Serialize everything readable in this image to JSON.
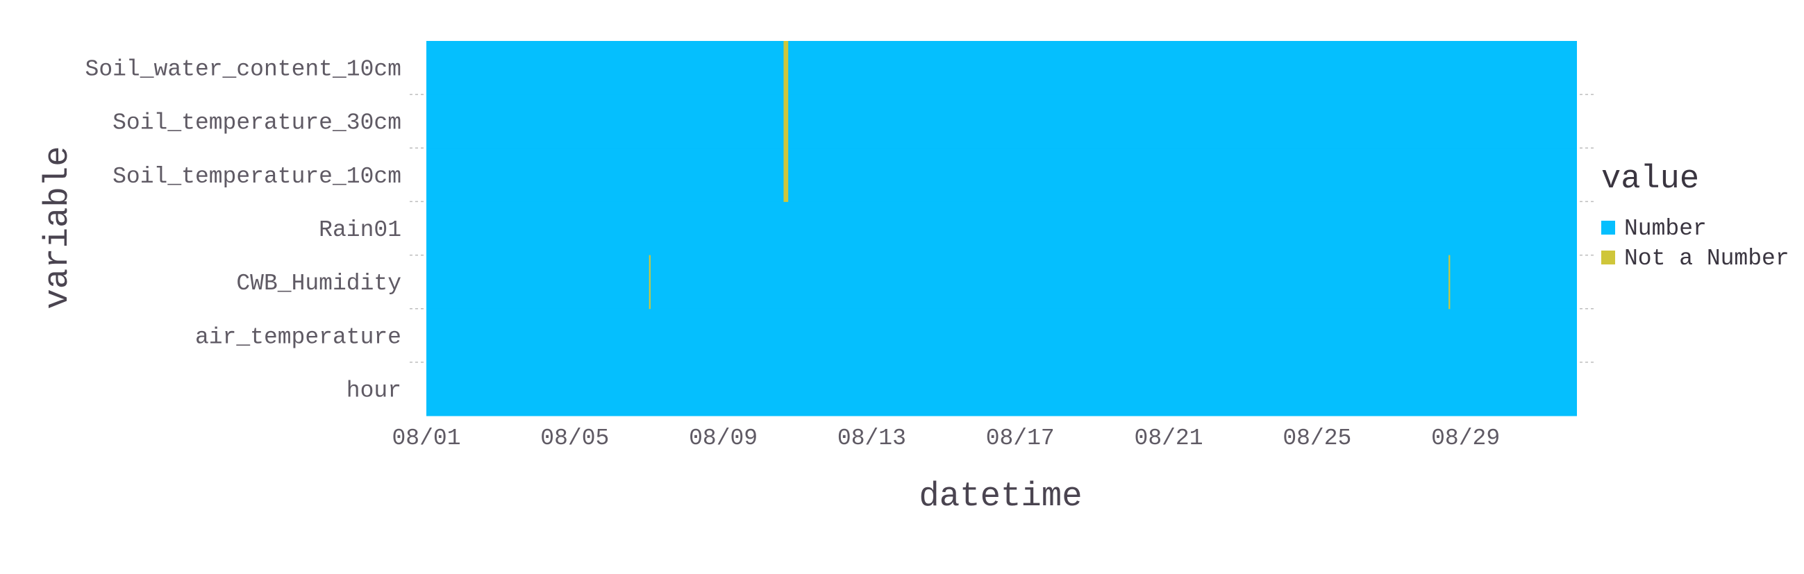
{
  "chart_data": {
    "type": "heatmap",
    "xlabel": "datetime",
    "ylabel": "variable",
    "x_range": [
      "2023-08-01",
      "2023-09-01"
    ],
    "x_ticks": [
      "08/01",
      "08/05",
      "08/09",
      "08/13",
      "08/17",
      "08/21",
      "08/25",
      "08/29"
    ],
    "y_categories": [
      "Soil_water_content_10cm",
      "Soil_temperature_30cm",
      "Soil_temperature_10cm",
      "Rain01",
      "CWB_Humidity",
      "air_temperature",
      "hour"
    ],
    "legend": {
      "title": "value",
      "placement": "right",
      "entries": [
        {
          "label": "Number",
          "color": "#05bffe"
        },
        {
          "label": "Not a Number",
          "color": "#cfc63a"
        }
      ]
    },
    "default_value": "Number",
    "nan_cells": [
      {
        "variables": [
          "Soil_water_content_10cm",
          "Soil_temperature_30cm",
          "Soil_temperature_10cm"
        ],
        "start": "2023-08-10T15:00",
        "end": "2023-08-10T18:00"
      },
      {
        "variables": [
          "CWB_Humidity"
        ],
        "start": "2023-08-07T00:00",
        "end": "2023-08-07T01:00"
      },
      {
        "variables": [
          "CWB_Humidity"
        ],
        "start": "2023-08-28T13:00",
        "end": "2023-08-28T14:00"
      }
    ],
    "grid": false
  }
}
